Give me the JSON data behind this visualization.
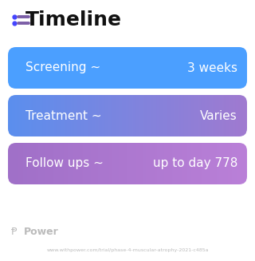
{
  "title": "Timeline",
  "title_icon_color": "#7B5EA7",
  "title_fontsize": 18,
  "title_color": "#111111",
  "background_color": "#ffffff",
  "rows": [
    {
      "label": "Screening ~",
      "value": "3 weeks",
      "color_left": "#4B9FFF",
      "color_right": "#4B9FFF",
      "gradient": false
    },
    {
      "label": "Treatment ~",
      "value": "Varies",
      "color_left": "#5B8FEE",
      "color_right": "#A07AD0",
      "gradient": true
    },
    {
      "label": "Follow ups ~",
      "value": "up to day 778",
      "color_left": "#A070C8",
      "color_right": "#BA80D8",
      "gradient": true
    }
  ],
  "footer_logo_text": "Power",
  "footer_url": "www.withpower.com/trial/phase-4-muscular-atrophy-2021-c485a",
  "footer_color": "#bbbbbb",
  "row_text_color": "#ffffff",
  "row_label_fontsize": 11,
  "row_value_fontsize": 11
}
